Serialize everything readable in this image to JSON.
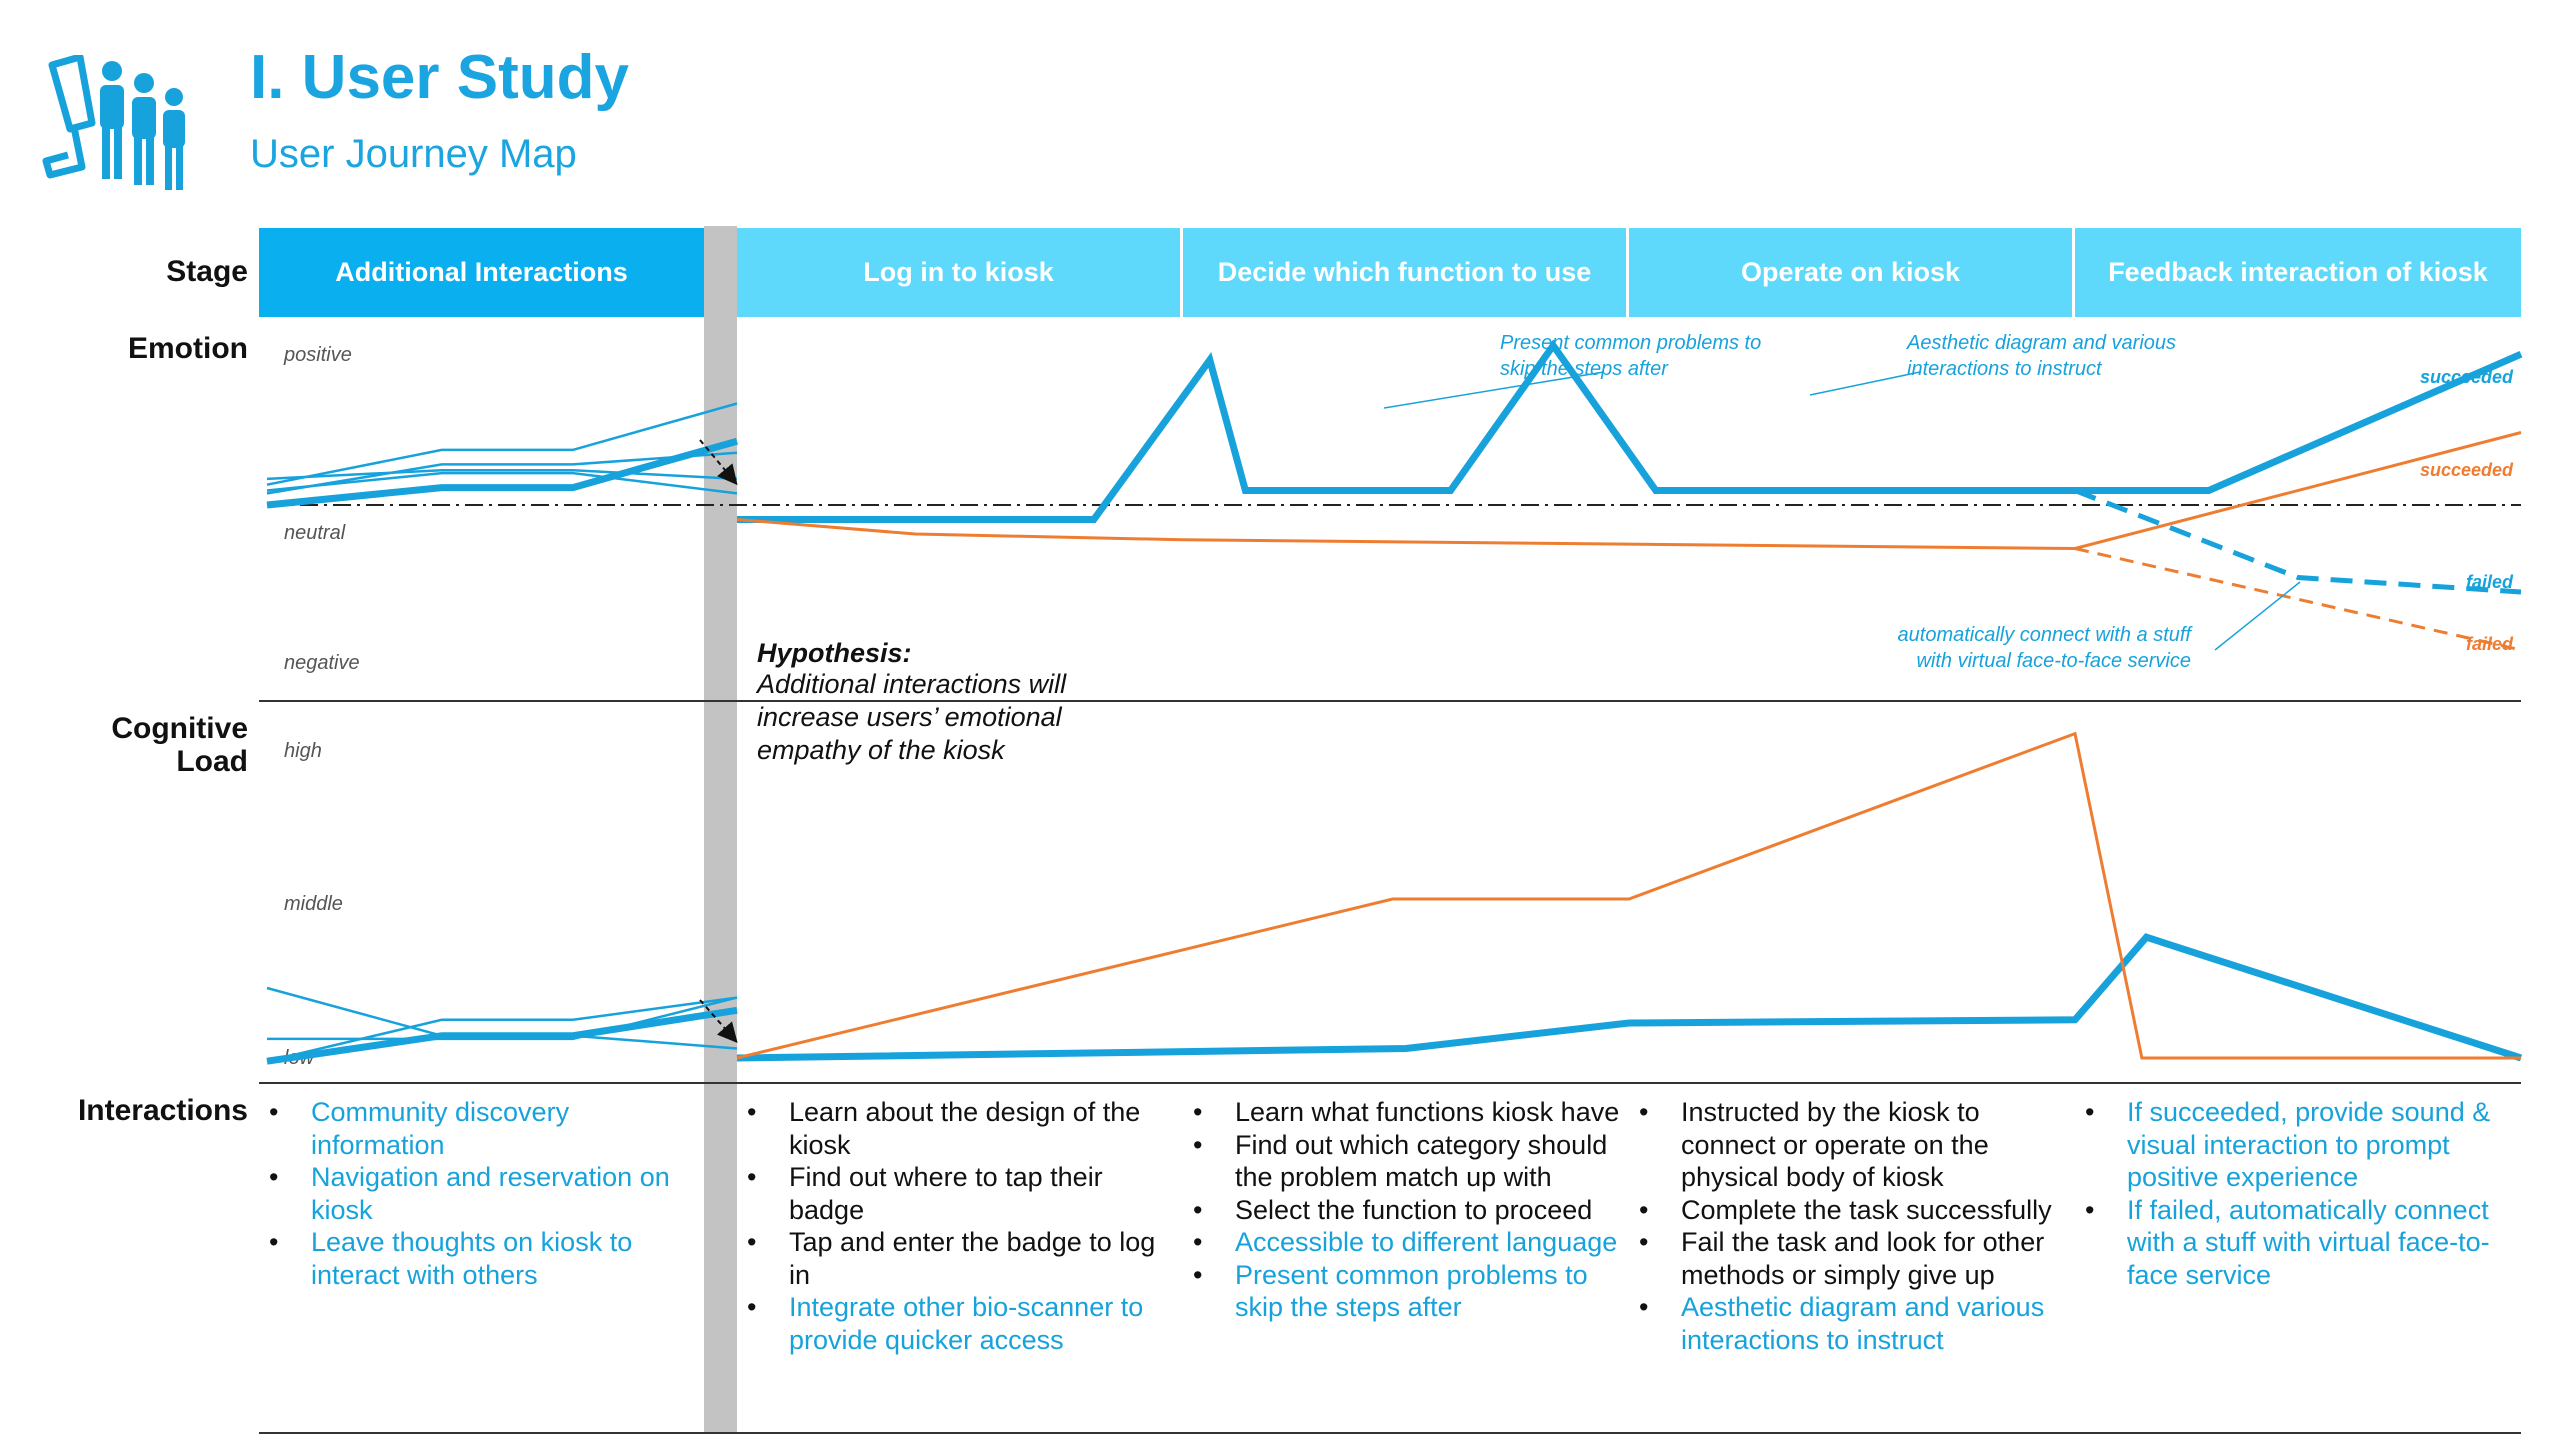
{
  "header": {
    "title": "I. User Study",
    "subtitle": "User Journey Map"
  },
  "row_labels": {
    "stage": "Stage",
    "emotion": "Emotion",
    "cognitive_load": "Cognitive\nLoad",
    "interactions": "Interactions"
  },
  "stages": [
    "Additional Interactions",
    "Log in to kiosk",
    "Decide which function to use",
    "Operate on kiosk",
    "Feedback interaction of kiosk"
  ],
  "emotion_levels": {
    "positive": "positive",
    "neutral": "neutral",
    "negative": "negative"
  },
  "cognitive_levels": {
    "high": "high",
    "middle": "middle",
    "low": "low"
  },
  "annotations": {
    "present_common": "Present common problems to\nskip the steps after",
    "aesthetic": "Aesthetic diagram and various\ninteractions to instruct",
    "auto_connect": "automatically connect with a stuff\nwith virtual face-to-face service"
  },
  "outcomes": {
    "blue_succeeded": "succeeded",
    "orange_succeeded": "succeeded",
    "blue_failed": "failed",
    "orange_failed": "failed"
  },
  "hypothesis": {
    "label": "Hypothesis:",
    "text": "Additional interactions will increase users’ emotional empathy of the kiosk"
  },
  "colors": {
    "primary": "#17a2dc",
    "stage_primary": "#0aaff0",
    "stage_light": "#5ed9fb",
    "orange": "#ee7d31",
    "divider": "#c3c3c3"
  },
  "icons": [
    "kiosk-users-icon"
  ],
  "chart_data": [
    {
      "type": "line",
      "title": "",
      "ylabel": "Emotion",
      "y_levels": [
        "negative",
        "neutral",
        "positive"
      ],
      "series": [
        {
          "x": [
            0.0,
            0.2,
            0.5,
            0.8,
            1.06,
            1.14,
            1.6,
            1.83,
            2.06,
            2.5,
            2.9,
            3.3,
            4.0
          ],
          "values": [
            -0.05,
            -0.05,
            -0.05,
            -0.05,
            0.5,
            0.05,
            0.05,
            0.55,
            0.05,
            0.05,
            0.05,
            0.05,
            0.52
          ]
        },
        {
          "x": [
            3.0,
            3.5,
            4.0
          ],
          "values": [
            0.05,
            -0.25,
            -0.3
          ]
        },
        {
          "x": [
            0.0,
            0.4,
            1.0,
            3.0,
            4.0
          ],
          "values": [
            -0.05,
            -0.1,
            -0.12,
            -0.15,
            0.25
          ]
        },
        {
          "x": [
            3.0,
            4.0
          ],
          "values": [
            -0.15,
            -0.5
          ]
        },
        {
          "x": [
            -1.0,
            -0.6,
            -0.3,
            0.0
          ],
          "values": [
            0.0,
            0.06,
            0.06,
            0.22
          ]
        },
        {
          "x": [
            -1.0,
            -0.6,
            -0.3,
            0.0
          ],
          "values": [
            0.07,
            0.19,
            0.19,
            0.35
          ]
        },
        {
          "x": [
            -1.0,
            -0.6,
            -0.3,
            0.0
          ],
          "values": [
            0.09,
            0.12,
            0.12,
            0.09
          ]
        },
        {
          "x": [
            -1.0,
            -0.6,
            -0.3,
            0.0
          ],
          "values": [
            0.04,
            0.14,
            0.14,
            0.18
          ]
        },
        {
          "x": [
            -1.0,
            -0.6,
            -0.3,
            0.0
          ],
          "values": [
            0.05,
            0.11,
            0.11,
            0.04
          ]
        }
      ]
    },
    {
      "type": "line",
      "title": "",
      "ylabel": "Cognitive Load",
      "y_levels": [
        "low",
        "middle",
        "high"
      ],
      "series": [
        {
          "x": [
            0.0,
            1.5,
            2.0,
            3.0,
            3.16,
            4.0
          ],
          "values": [
            0.0,
            0.03,
            0.11,
            0.12,
            0.38,
            0.0
          ]
        },
        {
          "x": [
            0.0,
            1.47,
            2.0,
            3.0,
            3.15,
            4.0
          ],
          "values": [
            0.0,
            0.5,
            0.5,
            1.02,
            0.0,
            0.0
          ]
        },
        {
          "x": [
            -1.0,
            -0.6,
            -0.3,
            0.0
          ],
          "values": [
            -0.01,
            0.07,
            0.07,
            0.15
          ]
        },
        {
          "x": [
            -1.0,
            -0.6,
            -0.3,
            0.0
          ],
          "values": [
            0.22,
            0.07,
            0.07,
            0.03
          ]
        },
        {
          "x": [
            -1.0,
            -0.6,
            -0.3,
            0.0
          ],
          "values": [
            -0.01,
            0.12,
            0.12,
            0.19
          ]
        },
        {
          "x": [
            -1.0,
            -0.6,
            -0.3,
            0.0
          ],
          "values": [
            0.06,
            0.06,
            0.06,
            0.19
          ]
        }
      ]
    }
  ],
  "interactions": [
    [
      {
        "text": "Community discovery information",
        "highlight": true
      },
      {
        "text": "Navigation and reservation on kiosk",
        "highlight": true
      },
      {
        "text": "Leave thoughts on kiosk to interact with others",
        "highlight": true
      }
    ],
    [
      {
        "text": "Learn about the design of the kiosk",
        "highlight": false
      },
      {
        "text": "Find out where to tap their badge",
        "highlight": false
      },
      {
        "text": "Tap and enter the badge to log in",
        "highlight": false
      },
      {
        "text": "Integrate other bio-scanner to provide quicker access",
        "highlight": true
      }
    ],
    [
      {
        "text": "Learn what functions kiosk have",
        "highlight": false
      },
      {
        "text": "Find out which category should the problem match up with",
        "highlight": false
      },
      {
        "text": "Select the function to proceed",
        "highlight": false
      },
      {
        "text": "Accessible to different language",
        "highlight": true
      },
      {
        "text": "Present common problems to skip the steps after",
        "highlight": true
      }
    ],
    [
      {
        "text": "Instructed by the kiosk to connect or operate on the physical body of kiosk",
        "highlight": false
      },
      {
        "text": "Complete the task successfully",
        "highlight": false
      },
      {
        "text": "Fail the task and look for other methods or simply give up",
        "highlight": false
      },
      {
        "text": "Aesthetic diagram and various interactions to instruct",
        "highlight": true
      }
    ],
    [
      {
        "text": "If succeeded, provide sound & visual interaction to prompt positive experience",
        "highlight": true
      },
      {
        "text": "If failed, automatically connect with a stuff with virtual face-to-face service",
        "highlight": true
      }
    ]
  ]
}
